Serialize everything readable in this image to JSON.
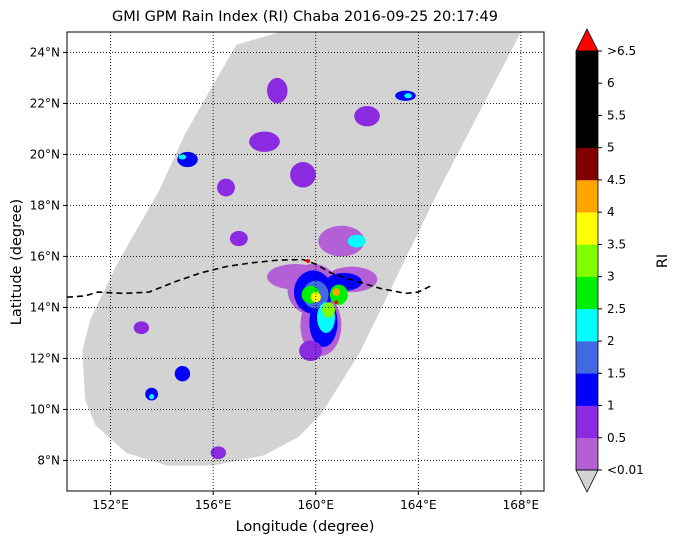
{
  "title": "GMI GPM Rain Index (RI) Chaba 2016-09-25 20:17:49",
  "xlabel": "Longitude (degree)",
  "ylabel": "Latitude (degree)",
  "colorbar_label": "RI",
  "map": {
    "lon_range": [
      150.3,
      168.9
    ],
    "lat_range": [
      6.8,
      24.8
    ],
    "lon_ticks": [
      {
        "value": 152,
        "label": "152°E"
      },
      {
        "value": 156,
        "label": "156°E"
      },
      {
        "value": 160,
        "label": "160°E"
      },
      {
        "value": 164,
        "label": "164°E"
      },
      {
        "value": 168,
        "label": "168°E"
      }
    ],
    "lat_ticks": [
      {
        "value": 8,
        "label": "8°N"
      },
      {
        "value": 10,
        "label": "10°N"
      },
      {
        "value": 12,
        "label": "12°N"
      },
      {
        "value": 14,
        "label": "14°N"
      },
      {
        "value": 16,
        "label": "16°N"
      },
      {
        "value": 18,
        "label": "18°N"
      },
      {
        "value": 20,
        "label": "20°N"
      },
      {
        "value": 22,
        "label": "22°N"
      },
      {
        "value": 24,
        "label": "24°N"
      }
    ],
    "grid": true,
    "swath_color": "#d3d3d3",
    "swath": [
      [
        164.0,
        24.8
      ],
      [
        168.0,
        24.8
      ],
      [
        164.8,
        18.6
      ],
      [
        161.7,
        12.2
      ],
      [
        160.2,
        9.8
      ],
      [
        159.3,
        8.9
      ],
      [
        158.0,
        8.2
      ],
      [
        156.0,
        7.8
      ],
      [
        154.2,
        7.8
      ],
      [
        152.6,
        8.3
      ],
      [
        151.4,
        9.4
      ],
      [
        151.0,
        10.4
      ],
      [
        150.9,
        12.3
      ],
      [
        151.2,
        13.5
      ],
      [
        152.2,
        15.6
      ],
      [
        153.9,
        18.6
      ],
      [
        154.9,
        20.8
      ],
      [
        156.9,
        24.3
      ],
      [
        158.6,
        24.8
      ],
      [
        160.6,
        24.8
      ],
      [
        162.3,
        24.8
      ]
    ],
    "track": [
      [
        150.3,
        14.4
      ],
      [
        151.0,
        14.45
      ],
      [
        151.5,
        14.6
      ],
      [
        152.5,
        14.55
      ],
      [
        153.5,
        14.6
      ],
      [
        154.5,
        15.0
      ],
      [
        155.5,
        15.35
      ],
      [
        156.5,
        15.6
      ],
      [
        157.5,
        15.75
      ],
      [
        158.5,
        15.85
      ],
      [
        159.5,
        15.88
      ],
      [
        160.0,
        15.7
      ],
      [
        160.6,
        15.35
      ],
      [
        161.5,
        15.05
      ],
      [
        162.5,
        14.75
      ],
      [
        163.5,
        14.55
      ],
      [
        164.0,
        14.6
      ],
      [
        164.6,
        14.9
      ]
    ],
    "track_style": "dashed",
    "track_color": "#000000",
    "center_markers": [
      [
        159.7,
        15.82
      ],
      [
        160.8,
        14.2
      ]
    ],
    "center_marker_color": "#ff0000"
  },
  "colorbar": {
    "bounds": [
      "<0.01",
      "0.5",
      "1",
      "1.5",
      "2",
      "2.5",
      "3",
      "3.5",
      "4",
      "4.5",
      "5",
      "5.5",
      "6",
      ">6.5"
    ],
    "colors": [
      "#b35fd6",
      "#8a2be2",
      "#0000ff",
      "#4169e1",
      "#00ffff",
      "#00ee00",
      "#7fff00",
      "#ffff00",
      "#ffa500",
      "#800000",
      "#000000",
      "#000000",
      "#000000"
    ],
    "over_color": "#ff0000",
    "under_color": "#d3d3d3"
  },
  "rain_cells": [
    {
      "lon": 159.9,
      "lat": 14.7,
      "rx": 1.0,
      "ry": 1.0,
      "color": "#b35fd6"
    },
    {
      "lon": 160.2,
      "lat": 13.3,
      "rx": 0.8,
      "ry": 1.2,
      "color": "#b35fd6"
    },
    {
      "lon": 159.2,
      "lat": 15.2,
      "rx": 1.1,
      "ry": 0.5,
      "color": "#b35fd6"
    },
    {
      "lon": 161.4,
      "lat": 15.1,
      "rx": 1.0,
      "ry": 0.5,
      "color": "#b35fd6"
    },
    {
      "lon": 161.0,
      "lat": 16.6,
      "rx": 0.9,
      "ry": 0.6,
      "color": "#b35fd6"
    },
    {
      "lon": 159.9,
      "lat": 14.6,
      "rx": 0.75,
      "ry": 0.85,
      "color": "#0000ff"
    },
    {
      "lon": 160.3,
      "lat": 13.4,
      "rx": 0.55,
      "ry": 0.95,
      "color": "#0000ff"
    },
    {
      "lon": 161.1,
      "lat": 15.0,
      "rx": 0.7,
      "ry": 0.35,
      "color": "#0000ff"
    },
    {
      "lon": 160.0,
      "lat": 14.5,
      "rx": 0.5,
      "ry": 0.55,
      "color": "#4169e1"
    },
    {
      "lon": 160.4,
      "lat": 13.6,
      "rx": 0.35,
      "ry": 0.6,
      "color": "#00ffff"
    },
    {
      "lon": 159.8,
      "lat": 14.5,
      "rx": 0.35,
      "ry": 0.35,
      "color": "#00ee00"
    },
    {
      "lon": 160.9,
      "lat": 14.5,
      "rx": 0.35,
      "ry": 0.4,
      "color": "#00ee00"
    },
    {
      "lon": 160.5,
      "lat": 13.9,
      "rx": 0.25,
      "ry": 0.3,
      "color": "#7fff00"
    },
    {
      "lon": 160.0,
      "lat": 14.4,
      "rx": 0.2,
      "ry": 0.2,
      "color": "#ffff00"
    },
    {
      "lon": 160.8,
      "lat": 14.6,
      "rx": 0.15,
      "ry": 0.15,
      "color": "#ffa500"
    },
    {
      "lon": 159.8,
      "lat": 12.3,
      "rx": 0.45,
      "ry": 0.4,
      "color": "#8a2be2"
    },
    {
      "lon": 161.6,
      "lat": 16.6,
      "rx": 0.35,
      "ry": 0.25,
      "color": "#00ffff"
    },
    {
      "lon": 155.0,
      "lat": 19.8,
      "rx": 0.4,
      "ry": 0.3,
      "color": "#0000ff"
    },
    {
      "lon": 154.8,
      "lat": 19.9,
      "rx": 0.15,
      "ry": 0.1,
      "color": "#00ffff"
    },
    {
      "lon": 154.8,
      "lat": 11.4,
      "rx": 0.3,
      "ry": 0.3,
      "color": "#0000ff"
    },
    {
      "lon": 153.6,
      "lat": 10.6,
      "rx": 0.25,
      "ry": 0.25,
      "color": "#0000ff"
    },
    {
      "lon": 153.6,
      "lat": 10.5,
      "rx": 0.1,
      "ry": 0.1,
      "color": "#00ffff"
    },
    {
      "lon": 163.5,
      "lat": 22.3,
      "rx": 0.4,
      "ry": 0.2,
      "color": "#0000ff"
    },
    {
      "lon": 163.6,
      "lat": 22.3,
      "rx": 0.15,
      "ry": 0.1,
      "color": "#00ffff"
    },
    {
      "lon": 156.5,
      "lat": 18.7,
      "rx": 0.35,
      "ry": 0.35,
      "color": "#8a2be2"
    },
    {
      "lon": 158.0,
      "lat": 20.5,
      "rx": 0.6,
      "ry": 0.4,
      "color": "#8a2be2"
    },
    {
      "lon": 159.5,
      "lat": 19.2,
      "rx": 0.5,
      "ry": 0.5,
      "color": "#8a2be2"
    },
    {
      "lon": 162.0,
      "lat": 21.5,
      "rx": 0.5,
      "ry": 0.4,
      "color": "#8a2be2"
    },
    {
      "lon": 157.0,
      "lat": 16.7,
      "rx": 0.35,
      "ry": 0.3,
      "color": "#8a2be2"
    },
    {
      "lon": 158.5,
      "lat": 22.5,
      "rx": 0.4,
      "ry": 0.5,
      "color": "#8a2be2"
    },
    {
      "lon": 156.2,
      "lat": 8.3,
      "rx": 0.3,
      "ry": 0.25,
      "color": "#8a2be2"
    },
    {
      "lon": 153.2,
      "lat": 13.2,
      "rx": 0.3,
      "ry": 0.25,
      "color": "#8a2be2"
    }
  ]
}
